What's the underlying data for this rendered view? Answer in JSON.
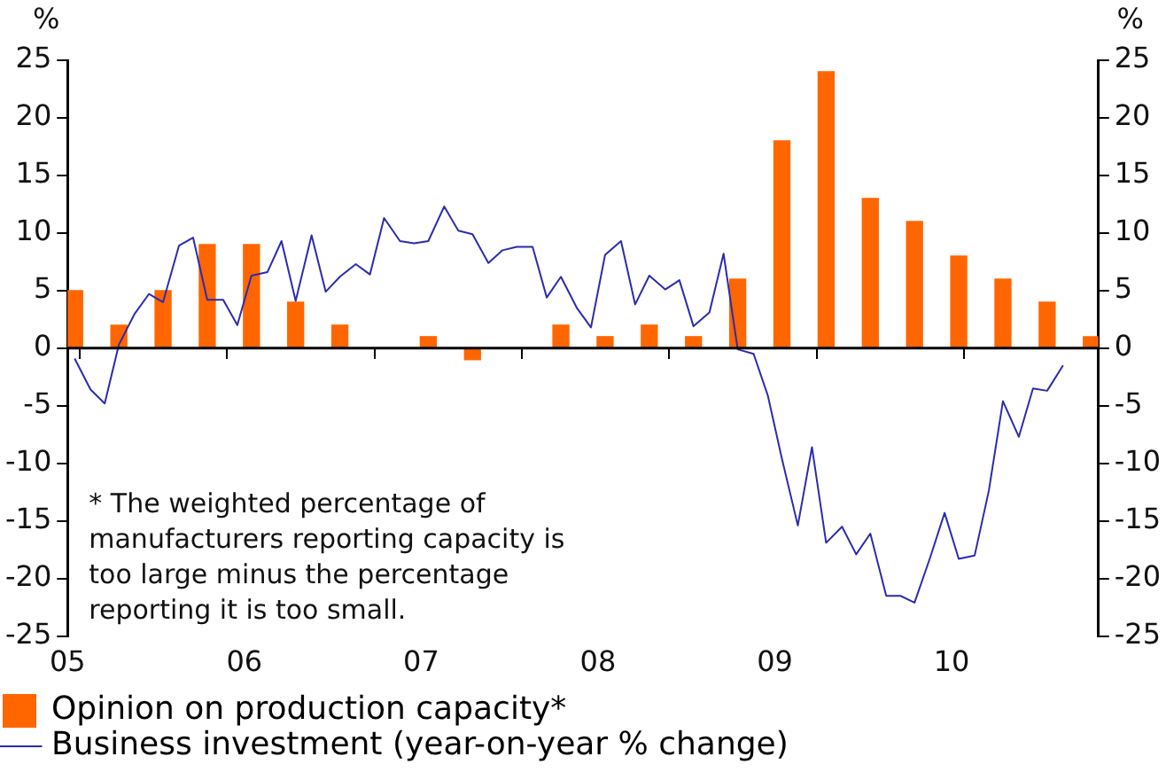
{
  "chart_data": {
    "type": "bar",
    "ylabel": "%",
    "y2label": "%",
    "xlim": [
      2005,
      2010.83
    ],
    "xticks": [
      {
        "value": 2005,
        "label": "05"
      },
      {
        "value": 2006,
        "label": "06"
      },
      {
        "value": 2007,
        "label": "07"
      },
      {
        "value": 2008,
        "label": "08"
      },
      {
        "value": 2009,
        "label": "09"
      },
      {
        "value": 2010,
        "label": "10"
      }
    ],
    "ylim": [
      -25,
      25
    ],
    "yticks": [
      -25,
      -20,
      -15,
      -10,
      -5,
      0,
      5,
      10,
      15,
      20,
      25
    ],
    "y2lim": [
      -25,
      25
    ],
    "y2ticks": [
      -25,
      -20,
      -15,
      -10,
      -5,
      0,
      5,
      10,
      15,
      20,
      25
    ],
    "legend": "bottom",
    "grid": false,
    "ref_lines": [
      {
        "axis": "y",
        "value": 0,
        "color": "#000000"
      }
    ],
    "annotations": [
      "* The weighted percentage of manufacturers reporting capacity is too large minus the percentage reporting it is too small."
    ],
    "series": [
      {
        "name": "Opinion on production capacity*",
        "type": "bar",
        "color": "#ff6600",
        "x": [
          2005.04,
          2005.29,
          2005.54,
          2005.79,
          2006.04,
          2006.29,
          2006.54,
          2006.79,
          2007.04,
          2007.29,
          2007.54,
          2007.79,
          2008.04,
          2008.29,
          2008.54,
          2008.79,
          2009.04,
          2009.29,
          2009.54,
          2009.79,
          2010.04,
          2010.29,
          2010.54,
          2010.79
        ],
        "values": [
          5,
          2,
          5,
          9,
          9,
          4,
          2,
          0,
          1,
          -1,
          0,
          2,
          1,
          2,
          1,
          6,
          18,
          24,
          13,
          11,
          8,
          6,
          4,
          1
        ]
      },
      {
        "name": "Business investment (year-on-year % change)",
        "type": "line",
        "color": "#2b2bb0",
        "x": [
          2005.04,
          2005.13,
          2005.21,
          2005.29,
          2005.38,
          2005.46,
          2005.54,
          2005.63,
          2005.71,
          2005.79,
          2005.88,
          2005.96,
          2006.04,
          2006.13,
          2006.21,
          2006.29,
          2006.38,
          2006.46,
          2006.54,
          2006.63,
          2006.71,
          2006.79,
          2006.88,
          2006.96,
          2007.04,
          2007.13,
          2007.21,
          2007.29,
          2007.38,
          2007.46,
          2007.54,
          2007.63,
          2007.71,
          2007.79,
          2007.88,
          2007.96,
          2008.04,
          2008.13,
          2008.21,
          2008.29,
          2008.38,
          2008.46,
          2008.54,
          2008.63,
          2008.71,
          2008.79,
          2008.88,
          2008.96,
          2009.04,
          2009.13,
          2009.21,
          2009.29,
          2009.38,
          2009.46,
          2009.54,
          2009.63,
          2009.71,
          2009.79,
          2009.88,
          2009.96,
          2010.04,
          2010.13,
          2010.21,
          2010.29,
          2010.38,
          2010.46,
          2010.54,
          2010.63
        ],
        "values": [
          -0.9,
          -3.6,
          -4.8,
          0.3,
          3.0,
          4.7,
          4.0,
          8.9,
          9.6,
          4.2,
          4.2,
          2.0,
          6.3,
          6.6,
          9.3,
          4.1,
          9.8,
          4.9,
          6.2,
          7.3,
          6.4,
          11.3,
          9.3,
          9.1,
          9.3,
          12.3,
          10.2,
          9.9,
          7.4,
          8.5,
          8.8,
          8.8,
          4.4,
          6.2,
          3.5,
          1.8,
          8.1,
          9.3,
          3.8,
          6.3,
          5.1,
          5.9,
          1.9,
          3.1,
          8.2,
          -0.1,
          -0.5,
          -4.1,
          -9.6,
          -15.4,
          -8.6,
          -16.9,
          -15.5,
          -17.9,
          -16.1,
          -21.5,
          -21.5,
          -22.1,
          -18.1,
          -14.3,
          -18.3,
          -18.0,
          -12.4,
          -4.6,
          -7.7,
          -3.5,
          -3.7,
          -1.5
        ]
      }
    ]
  }
}
